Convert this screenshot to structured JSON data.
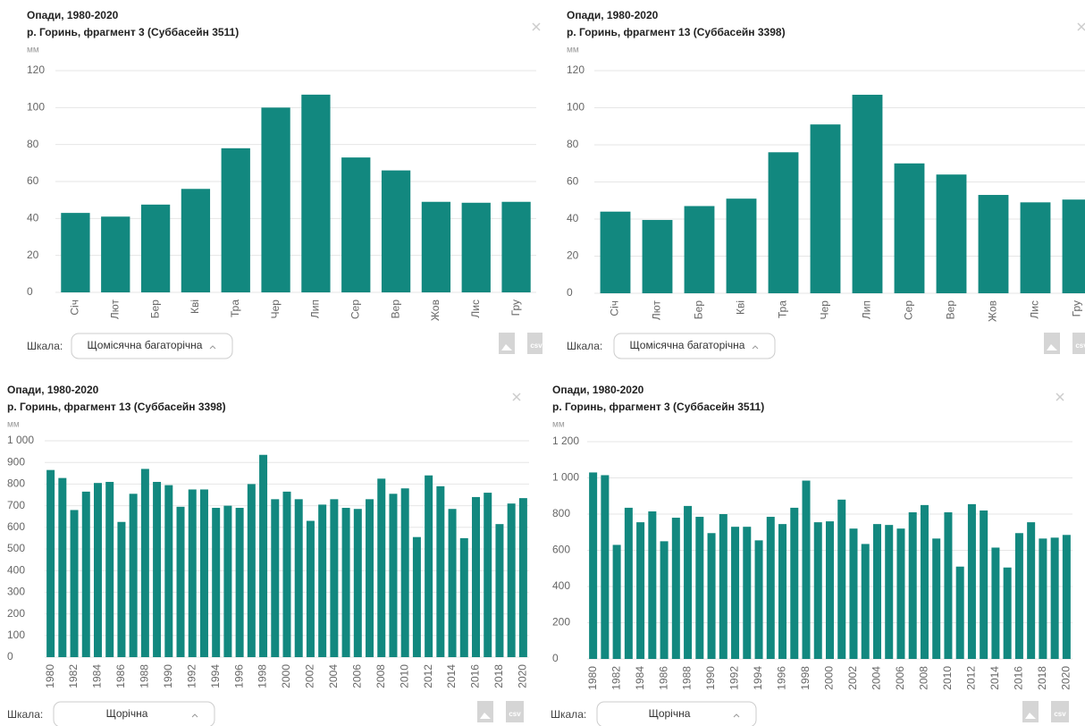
{
  "chart_data": [
    {
      "type": "bar",
      "title": "Опади, 1980-2020",
      "subtitle": "р. Горинь, фрагмент 3 (Суббасейн 3511)",
      "y_unit": "мм",
      "categories": [
        "Січ",
        "Лют",
        "Бер",
        "Кві",
        "Тра",
        "Чер",
        "Лип",
        "Сер",
        "Вер",
        "Жов",
        "Лис",
        "Гру"
      ],
      "values": [
        43,
        41,
        47.5,
        56,
        78,
        100,
        107,
        73,
        66,
        49,
        48.5,
        49
      ],
      "color": "#12887f",
      "ylim": [
        0,
        120
      ],
      "yticks": [
        0,
        20,
        40,
        60,
        80,
        100,
        120
      ],
      "grid": true,
      "scale_label": "Шкала:",
      "scale_value": "Щомісячна багаторічна",
      "export_csv": "csv"
    },
    {
      "type": "bar",
      "title": "Опади, 1980-2020",
      "subtitle": "р. Горинь, фрагмент 13 (Суббасейн 3398)",
      "y_unit": "мм",
      "categories": [
        "Січ",
        "Лют",
        "Бер",
        "Кві",
        "Тра",
        "Чер",
        "Лип",
        "Сер",
        "Вер",
        "Жов",
        "Лис",
        "Гру"
      ],
      "values": [
        44,
        39.5,
        47,
        51,
        76,
        91,
        107,
        70,
        64,
        53,
        49,
        50.5
      ],
      "color": "#12887f",
      "ylim": [
        0,
        120
      ],
      "yticks": [
        0,
        20,
        40,
        60,
        80,
        100,
        120
      ],
      "grid": true,
      "scale_label": "Шкала:",
      "scale_value": "Щомісячна багаторічна",
      "export_csv": "csv"
    },
    {
      "type": "bar",
      "title": "Опади, 1980-2020",
      "subtitle": "р. Горинь, фрагмент 13 (Суббасейн 3398)",
      "y_unit": "мм",
      "categories": [
        "1980",
        null,
        "1982",
        null,
        "1984",
        null,
        "1986",
        null,
        "1988",
        null,
        "1990",
        null,
        "1992",
        null,
        "1994",
        null,
        "1996",
        null,
        "1998",
        null,
        "2000",
        null,
        "2002",
        null,
        "2004",
        null,
        "2006",
        null,
        "2008",
        null,
        "2010",
        null,
        "2012",
        null,
        "2014",
        null,
        "2016",
        null,
        "2018",
        null,
        "2020"
      ],
      "values": [
        865,
        828,
        680,
        765,
        805,
        810,
        625,
        755,
        870,
        810,
        795,
        695,
        775,
        775,
        690,
        700,
        690,
        800,
        935,
        730,
        765,
        730,
        630,
        705,
        730,
        690,
        685,
        730,
        825,
        755,
        780,
        555,
        840,
        790,
        685,
        550,
        740,
        760,
        615,
        710,
        735
      ],
      "color": "#12887f",
      "ylim": [
        0,
        1000
      ],
      "yticks": [
        0,
        100,
        200,
        300,
        400,
        500,
        600,
        700,
        800,
        900,
        {
          "value": 1000,
          "label": "1 000"
        }
      ],
      "grid": true,
      "scale_label": "Шкала:",
      "scale_value": "Щорічна",
      "export_csv": "csv"
    },
    {
      "type": "bar",
      "title": "Опади, 1980-2020",
      "subtitle": "р. Горинь, фрагмент 3 (Суббасейн 3511)",
      "y_unit": "мм",
      "categories": [
        "1980",
        null,
        "1982",
        null,
        "1984",
        null,
        "1986",
        null,
        "1988",
        null,
        "1990",
        null,
        "1992",
        null,
        "1994",
        null,
        "1996",
        null,
        "1998",
        null,
        "2000",
        null,
        "2002",
        null,
        "2004",
        null,
        "2006",
        null,
        "2008",
        null,
        "2010",
        null,
        "2012",
        null,
        "2014",
        null,
        "2016",
        null,
        "2018",
        null,
        "2020"
      ],
      "values": [
        1030,
        1015,
        630,
        835,
        755,
        815,
        650,
        780,
        845,
        785,
        695,
        800,
        730,
        730,
        655,
        785,
        745,
        835,
        985,
        755,
        760,
        880,
        720,
        635,
        745,
        740,
        720,
        810,
        850,
        665,
        810,
        510,
        855,
        820,
        615,
        505,
        695,
        755,
        665,
        670,
        685
      ],
      "color": "#12887f",
      "ylim": [
        0,
        1200
      ],
      "yticks": [
        0,
        200,
        400,
        600,
        800,
        {
          "value": 1000,
          "label": "1 000"
        },
        {
          "value": 1200,
          "label": "1 200"
        }
      ],
      "grid": true,
      "scale_label": "Шкала:",
      "scale_value": "Щорічна",
      "export_csv": "csv"
    }
  ]
}
